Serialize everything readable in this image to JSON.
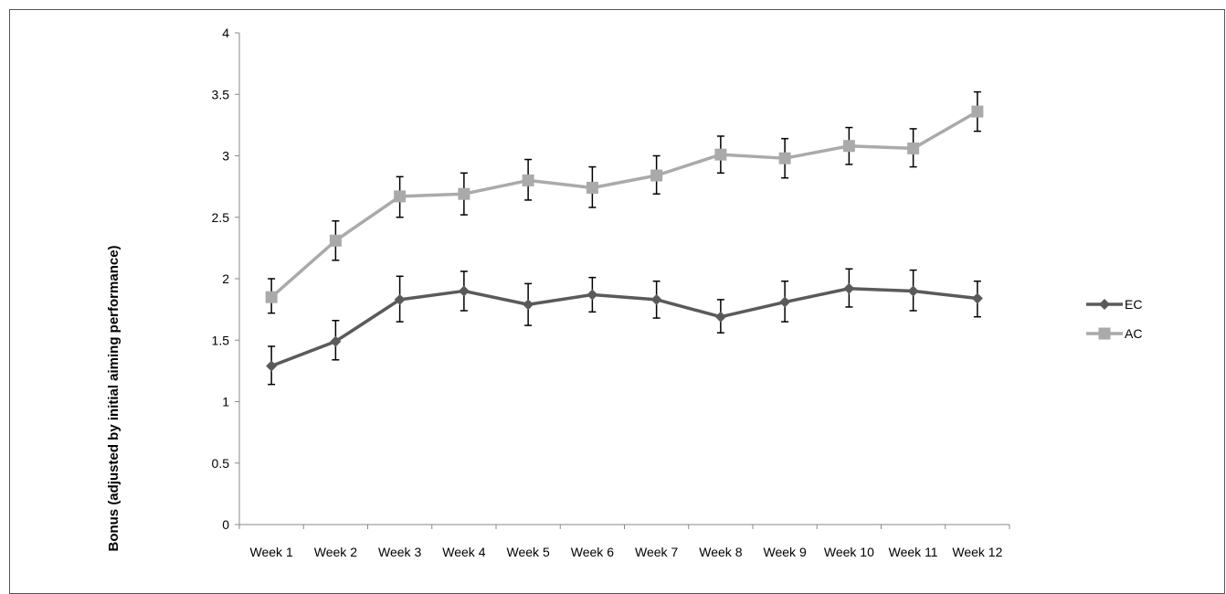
{
  "chart_data": {
    "type": "line",
    "title": "",
    "xlabel": "",
    "ylabel": "Bonus (adjusted by initial aiming performance)",
    "categories": [
      "Week 1",
      "Week 2",
      "Week 3",
      "Week 4",
      "Week 5",
      "Week 6",
      "Week 7",
      "Week 8",
      "Week 9",
      "Week 10",
      "Week 11",
      "Week 12"
    ],
    "ylim": [
      0,
      4
    ],
    "yticks": [
      "0",
      "0.5",
      "1",
      "1.5",
      "2",
      "2.5",
      "3",
      "3.5",
      "4"
    ],
    "grid": false,
    "legend_position": "right",
    "series": [
      {
        "name": "EC",
        "color": "#5a5a5a",
        "marker": "diamond",
        "values": [
          1.29,
          1.49,
          1.83,
          1.9,
          1.79,
          1.87,
          1.83,
          1.69,
          1.81,
          1.92,
          1.9,
          1.84
        ],
        "err_low": [
          1.14,
          1.34,
          1.65,
          1.74,
          1.62,
          1.73,
          1.68,
          1.56,
          1.65,
          1.77,
          1.74,
          1.69
        ],
        "err_high": [
          1.45,
          1.66,
          2.02,
          2.06,
          1.96,
          2.01,
          1.98,
          1.83,
          1.98,
          2.08,
          2.07,
          1.98
        ]
      },
      {
        "name": "AC",
        "color": "#aaaaaa",
        "marker": "square",
        "values": [
          1.85,
          2.31,
          2.67,
          2.69,
          2.8,
          2.74,
          2.84,
          3.01,
          2.98,
          3.08,
          3.06,
          3.36
        ],
        "err_low": [
          1.72,
          2.15,
          2.5,
          2.52,
          2.64,
          2.58,
          2.69,
          2.86,
          2.82,
          2.93,
          2.91,
          3.2
        ],
        "err_high": [
          2.0,
          2.47,
          2.83,
          2.86,
          2.97,
          2.91,
          3.0,
          3.16,
          3.14,
          3.23,
          3.22,
          3.52
        ]
      }
    ]
  }
}
